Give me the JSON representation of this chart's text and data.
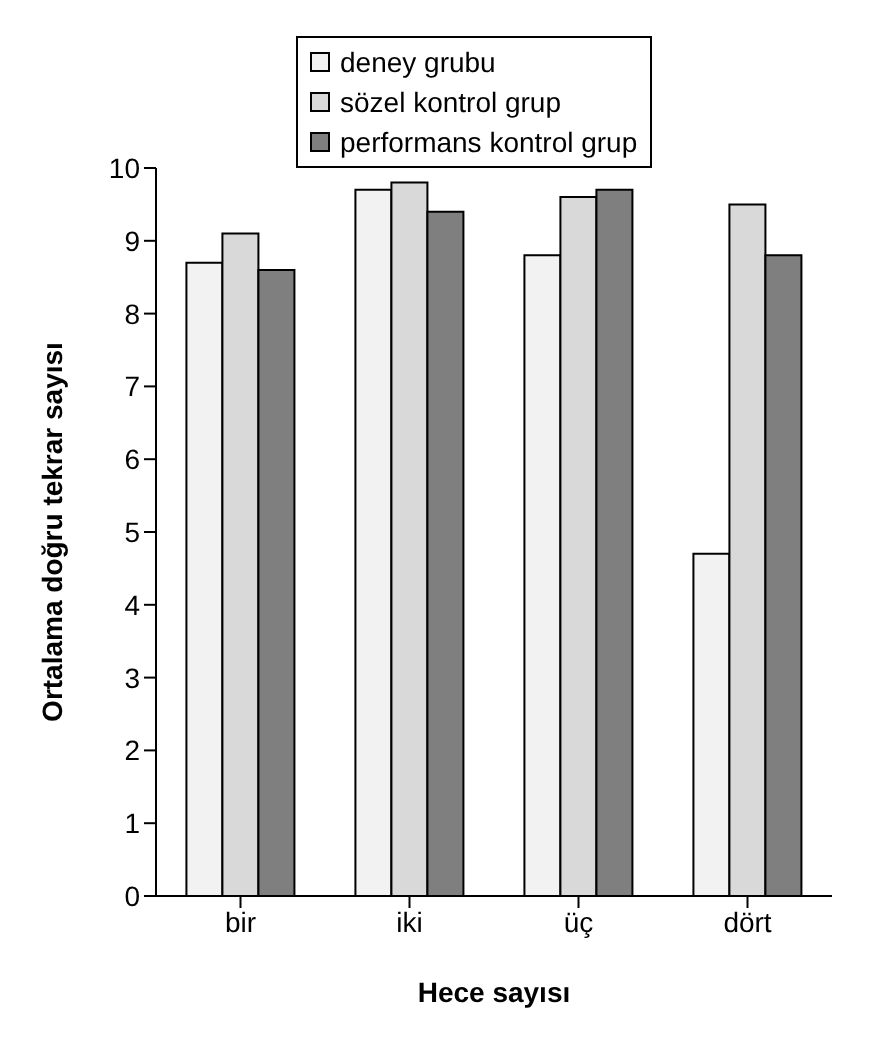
{
  "chart_data": {
    "type": "bar",
    "xlabel": "Hece sayısı",
    "ylabel": "Ortalama doğru tekrar sayısı",
    "categories": [
      "bir",
      "iki",
      "üç",
      "dört"
    ],
    "series": [
      {
        "name": "deney grubu",
        "color": "#f2f2f2",
        "values": [
          8.7,
          9.7,
          8.8,
          4.7
        ]
      },
      {
        "name": "sözel kontrol grup",
        "color": "#d9d9d9",
        "values": [
          9.1,
          9.8,
          9.6,
          9.5
        ]
      },
      {
        "name": "performans kontrol grup",
        "color": "#7f7f7f",
        "values": [
          8.6,
          9.4,
          9.7,
          8.8
        ]
      }
    ],
    "ylim": [
      0,
      10
    ],
    "yticks": [
      0,
      1,
      2,
      3,
      4,
      5,
      6,
      7,
      8,
      9,
      10
    ],
    "legend": "top",
    "grid": false
  }
}
